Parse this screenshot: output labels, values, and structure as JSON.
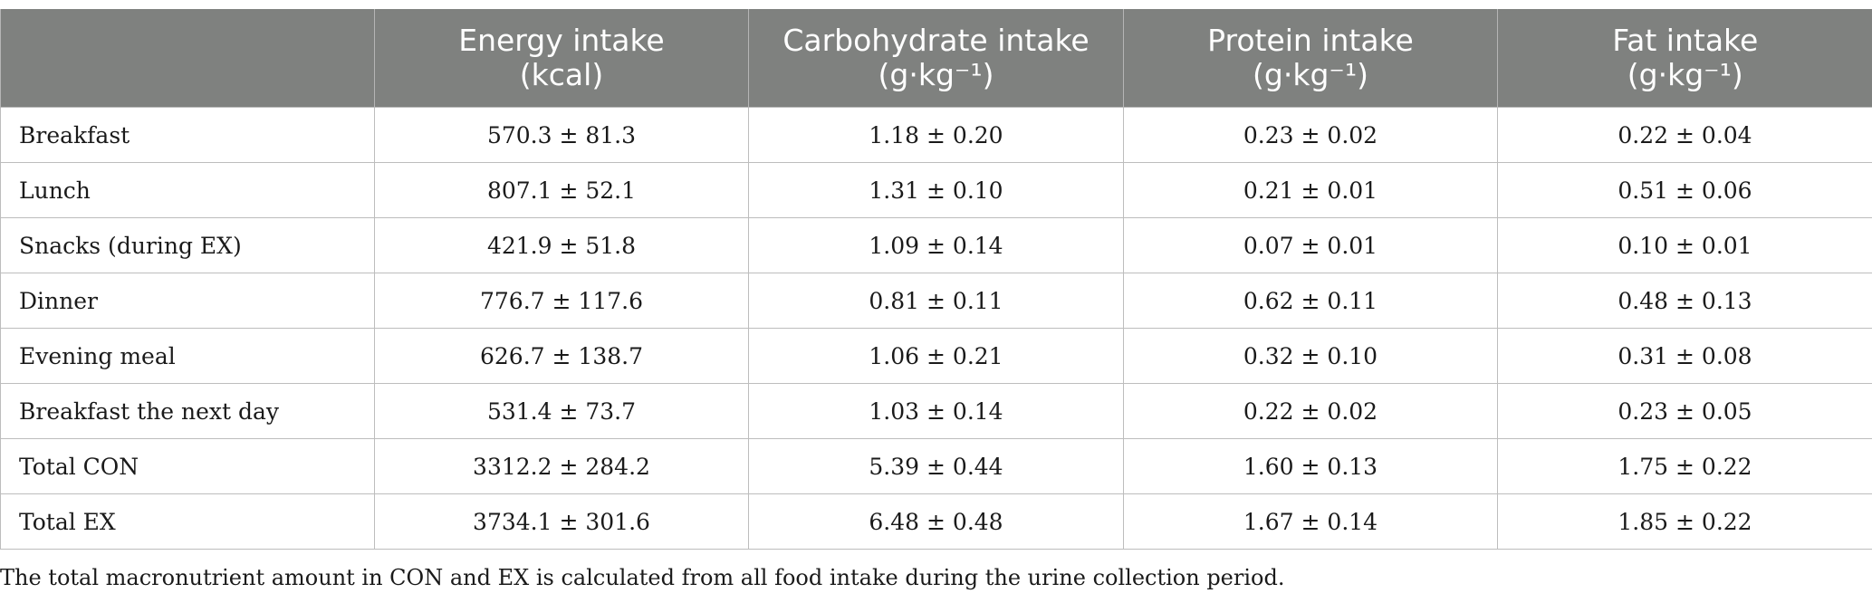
{
  "table": {
    "headers": [
      {
        "line1": "",
        "line2": ""
      },
      {
        "line1": "Energy intake",
        "line2": "(kcal)"
      },
      {
        "line1": "Carbohydrate intake",
        "line2": "(g·kg⁻¹)"
      },
      {
        "line1": "Protein intake",
        "line2": "(g·kg⁻¹)"
      },
      {
        "line1": "Fat intake",
        "line2": "(g·kg⁻¹)"
      }
    ],
    "rows": [
      {
        "label": "Breakfast",
        "energy": "570.3 ± 81.3",
        "carbohydrate": "1.18 ± 0.20",
        "protein": "0.23 ± 0.02",
        "fat": "0.22 ± 0.04"
      },
      {
        "label": "Lunch",
        "energy": "807.1 ± 52.1",
        "carbohydrate": "1.31 ± 0.10",
        "protein": "0.21 ± 0.01",
        "fat": "0.51 ± 0.06"
      },
      {
        "label": "Snacks (during EX)",
        "energy": "421.9 ± 51.8",
        "carbohydrate": "1.09 ± 0.14",
        "protein": "0.07 ± 0.01",
        "fat": "0.10 ± 0.01"
      },
      {
        "label": "Dinner",
        "energy": "776.7 ± 117.6",
        "carbohydrate": "0.81 ± 0.11",
        "protein": "0.62 ± 0.11",
        "fat": "0.48 ± 0.13"
      },
      {
        "label": "Evening meal",
        "energy": "626.7 ± 138.7",
        "carbohydrate": "1.06 ± 0.21",
        "protein": "0.32 ± 0.10",
        "fat": "0.31 ± 0.08"
      },
      {
        "label": "Breakfast the next day",
        "energy": "531.4 ± 73.7",
        "carbohydrate": "1.03 ± 0.14",
        "protein": "0.22 ± 0.02",
        "fat": "0.23 ± 0.05"
      },
      {
        "label": "Total CON",
        "energy": "3312.2 ± 284.2",
        "carbohydrate": "5.39 ± 0.44",
        "protein": "1.60 ± 0.13",
        "fat": "1.75 ± 0.22"
      },
      {
        "label": "Total EX",
        "energy": "3734.1 ± 301.6",
        "carbohydrate": "6.48 ± 0.48",
        "protein": "1.67 ± 0.14",
        "fat": "1.85 ± 0.22"
      }
    ]
  },
  "footnote": "The total macronutrient amount in CON and EX is calculated from all food intake during the urine collection period.",
  "colors": {
    "header_bg": "#7f817f",
    "header_text": "#ffffff",
    "grid": "#bdbdbd"
  }
}
